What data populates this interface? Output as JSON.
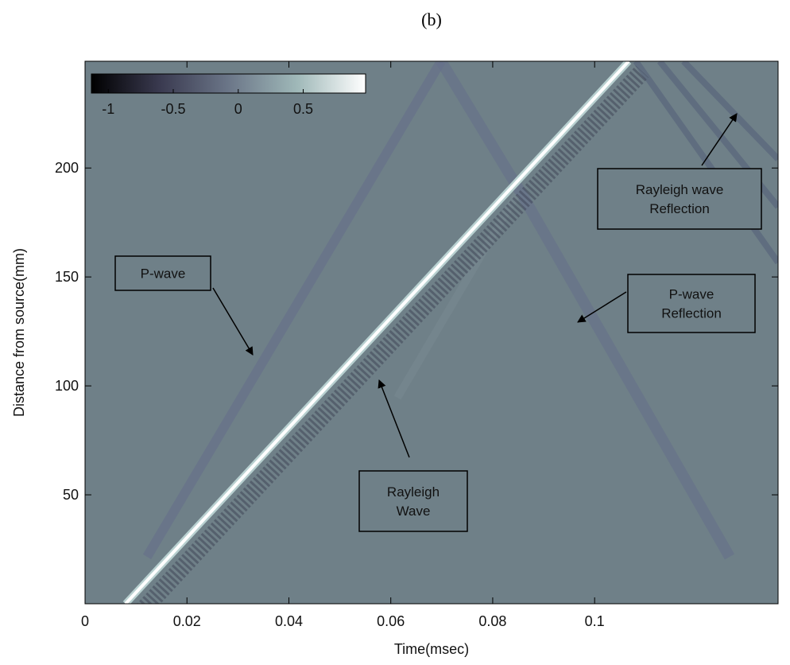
{
  "chart_data": {
    "type": "image",
    "title": "(b)",
    "x_label": "Time(msec)",
    "y_label": "Distance from source(mm)",
    "xlim": [
      0,
      0.136
    ],
    "xticks": [
      0,
      0.02,
      0.04,
      0.06,
      0.08,
      0.1
    ],
    "ylim": [
      0,
      249
    ],
    "yticks": [
      50,
      100,
      150,
      200
    ],
    "colorbar": {
      "clim": [
        -1.13,
        0.98
      ],
      "ticks": [
        -1,
        -0.5,
        0,
        0.5
      ],
      "colors": [
        "#000000",
        "#3a3a50",
        "#6b7688",
        "#9fb8b8",
        "#ffffff"
      ]
    },
    "annotations": [
      {
        "lines": [
          "P-wave"
        ]
      },
      {
        "lines": [
          "Rayleigh",
          "Wave"
        ]
      },
      {
        "lines": [
          "Rayleigh wave",
          "Reflection"
        ]
      },
      {
        "lines": [
          "P-wave",
          "Reflection"
        ]
      }
    ]
  }
}
